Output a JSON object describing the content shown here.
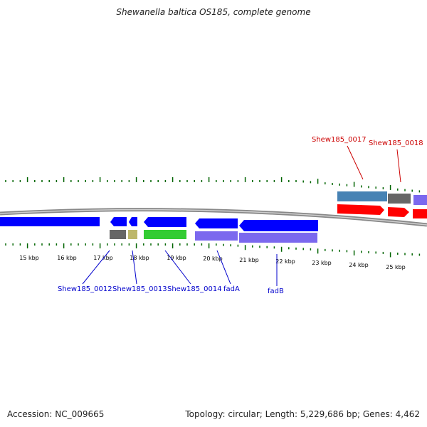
{
  "title": "Shewanella baltica OS185, complete genome",
  "footer": {
    "accession": "Accession: NC_009665",
    "stats": "Topology: circular; Length: 5,229,686 bp; Genes: 4,462"
  },
  "colors": {
    "blue_gene": "#0000ff",
    "red_gene": "#ff0000",
    "purple_gene": "#7b68ee",
    "green_gene": "#33cc33",
    "gray_gene": "#666666",
    "khaki_gene": "#bdb76b",
    "steel_gene": "#4682b4",
    "tick_green": "#006400",
    "label_blue": "#0000cc",
    "label_red": "#cc0000",
    "backbone": "#888888"
  },
  "ticks": [
    "15 kbp",
    "16 kbp",
    "17 kbp",
    "18 kbp",
    "19 kbp",
    "20 kbp",
    "21 kbp",
    "22 kbp",
    "23 kbp",
    "24 kbp",
    "25 kbp"
  ],
  "gene_labels": [
    {
      "name": "Shew185_0012",
      "color": "blue"
    },
    {
      "name": "Shew185_0013",
      "color": "blue"
    },
    {
      "name": "Shew185_0014",
      "color": "blue"
    },
    {
      "name": "fadA",
      "color": "blue"
    },
    {
      "name": "fadB",
      "color": "blue"
    },
    {
      "name": "Shew185_0017",
      "color": "red"
    },
    {
      "name": "Shew185_0018",
      "color": "red"
    }
  ]
}
